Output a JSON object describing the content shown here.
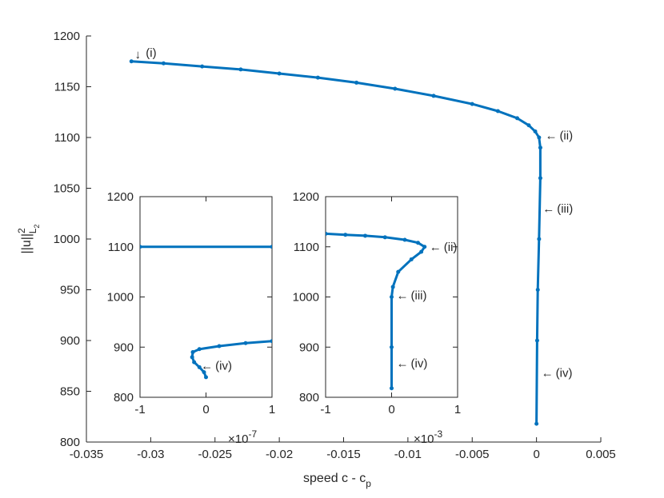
{
  "chart_data": [
    {
      "type": "line",
      "panel": "main",
      "xlabel": "speed c - c",
      "xlabel_sub": "p",
      "ylabel": "||u||",
      "ylabel_sup": "2",
      "ylabel_sub": "L",
      "ylabel_subsub": "2",
      "xlim": [
        -0.035,
        0.005
      ],
      "ylim": [
        800,
        1200
      ],
      "xticks": [
        -0.035,
        -0.03,
        -0.025,
        -0.02,
        -0.015,
        -0.01,
        -0.005,
        0,
        0.005
      ],
      "xtick_labels": [
        "-0.035",
        "-0.03",
        "-0.025",
        "-0.02",
        "-0.015",
        "-0.01",
        "-0.005",
        "0",
        "0.005"
      ],
      "yticks": [
        800,
        850,
        900,
        950,
        1000,
        1050,
        1100,
        1150,
        1200
      ],
      "ytick_labels": [
        "800",
        "850",
        "900",
        "950",
        "1000",
        "1050",
        "1100",
        "1150",
        "1200"
      ],
      "grid": false,
      "color": "#0072BD",
      "series": [
        {
          "x": [
            -0.0315,
            -0.029,
            -0.026,
            -0.023,
            -0.02,
            -0.017,
            -0.014,
            -0.011,
            -0.008,
            -0.005,
            -0.003,
            -0.0015,
            -0.0006,
            -0.0001,
            0.0002,
            0.0003,
            0.0003,
            0.0002,
            0.0001,
            5e-05,
            0.0
          ],
          "y": [
            1175,
            1173,
            1170,
            1167,
            1163,
            1159,
            1154,
            1148,
            1141,
            1133,
            1126,
            1119,
            1112,
            1106,
            1100,
            1090,
            1060,
            1000,
            950,
            900,
            818
          ]
        }
      ],
      "annotations": [
        {
          "text": "(i)",
          "arrow": "↓",
          "x": -0.0315,
          "y": 1175
        },
        {
          "text": "(ii)",
          "arrow": "←",
          "x": 0.0003,
          "y": 1102
        },
        {
          "text": "(iii)",
          "arrow": "←",
          "x": 0.0001,
          "y": 1030
        },
        {
          "text": "(iv)",
          "arrow": "←",
          "x": 0.0,
          "y": 868
        }
      ]
    },
    {
      "type": "line",
      "panel": "inset-left",
      "xlim": [
        -1,
        1
      ],
      "ylim": [
        800,
        1200
      ],
      "xticks": [
        -1,
        0,
        1
      ],
      "xtick_labels": [
        "-1",
        "0",
        "1"
      ],
      "yticks": [
        800,
        900,
        1000,
        1100,
        1200
      ],
      "ytick_labels": [
        "800",
        "900",
        "1000",
        "1100",
        "1200"
      ],
      "x_exponent": "×10",
      "x_exponent_power": "-7",
      "color": "#0072BD",
      "series": [
        {
          "x": [
            -1,
            1
          ],
          "y": [
            1100,
            1100
          ]
        },
        {
          "x": [
            1.0,
            0.6,
            0.2,
            -0.1,
            -0.2,
            -0.21,
            -0.18,
            -0.1,
            -0.03,
            0.0
          ],
          "y": [
            912,
            908,
            902,
            896,
            890,
            880,
            870,
            860,
            850,
            840
          ]
        }
      ],
      "annotations": [
        {
          "text": "(iv)",
          "arrow": "←",
          "x": -0.15,
          "y": 863
        }
      ]
    },
    {
      "type": "line",
      "panel": "inset-right",
      "xlim": [
        -1,
        1
      ],
      "ylim": [
        800,
        1200
      ],
      "xticks": [
        -1,
        0,
        1
      ],
      "xtick_labels": [
        "-1",
        "0",
        "1"
      ],
      "yticks": [
        800,
        900,
        1000,
        1100,
        1200
      ],
      "ytick_labels": [
        "800",
        "900",
        "1000",
        "1100",
        "1200"
      ],
      "x_exponent": "×10",
      "x_exponent_power": "-3",
      "color": "#0072BD",
      "series": [
        {
          "x": [
            -1.0,
            -0.7,
            -0.4,
            -0.1,
            0.2,
            0.4,
            0.5,
            0.45,
            0.3,
            0.1,
            0.02,
            0.0,
            0.0,
            0.0
          ],
          "y": [
            1126,
            1124,
            1122,
            1119,
            1114,
            1108,
            1100,
            1090,
            1075,
            1050,
            1020,
            1000,
            900,
            818
          ]
        }
      ],
      "annotations": [
        {
          "text": "(ii)",
          "arrow": "←",
          "x": 0.5,
          "y": 1100
        },
        {
          "text": "(iii)",
          "arrow": "←",
          "x": 0.0,
          "y": 1003
        },
        {
          "text": "(iv)",
          "arrow": "←",
          "x": 0.0,
          "y": 868
        }
      ]
    }
  ]
}
